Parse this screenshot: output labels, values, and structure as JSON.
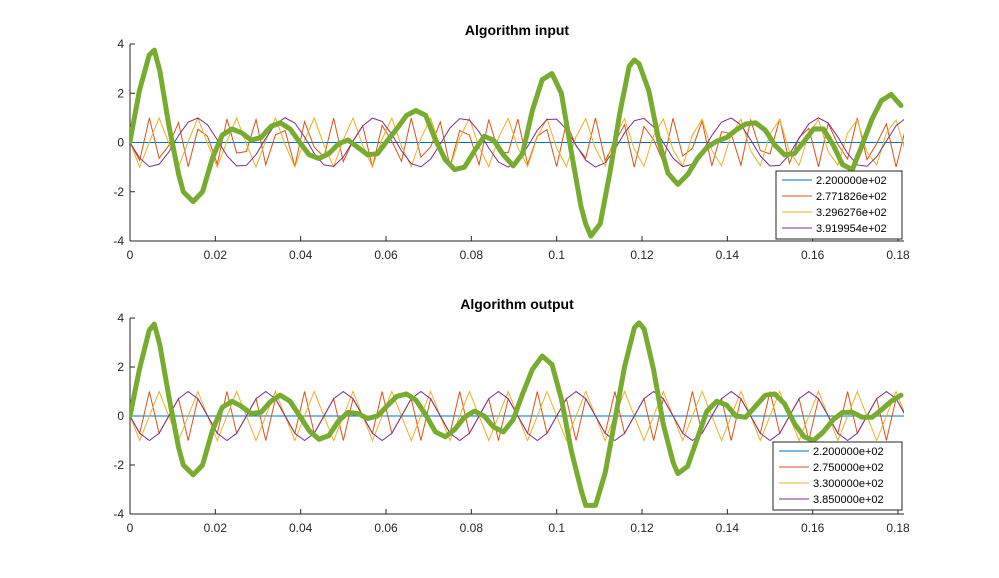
{
  "chart_data": [
    {
      "type": "line",
      "title": "Algorithm input",
      "xlabel": "",
      "ylabel": "",
      "xlim": [
        0,
        0.1814
      ],
      "ylim": [
        -4,
        4
      ],
      "xticks": [
        0,
        0.02,
        0.04,
        0.06,
        0.08,
        0.1,
        0.12,
        0.14,
        0.16,
        0.18
      ],
      "xtick_labels": [
        "0",
        "0.02",
        "0.04",
        "0.06",
        "0.08",
        "0.1",
        "0.12",
        "0.14",
        "0.16",
        "0.18"
      ],
      "yticks": [
        -4,
        -2,
        0,
        2,
        4
      ],
      "ytick_labels": [
        "-4",
        "-2",
        "0",
        "2",
        "4"
      ],
      "grid": false,
      "legend_position": "bottom-right",
      "sample_rate": 440,
      "series": [
        {
          "name": "2.200000e+02",
          "frequency": 220,
          "color": "#0072BD"
        },
        {
          "name": "2.771826e+02",
          "frequency": 277.1826,
          "color": "#D95319"
        },
        {
          "name": "3.296276e+02",
          "frequency": 329.6276,
          "color": "#EDB120"
        },
        {
          "name": "3.919954e+02",
          "frequency": 391.9954,
          "color": "#7E2F8E"
        }
      ],
      "sum_color": "#77AC30",
      "sum_points": [
        [
          0.0,
          0.05
        ],
        [
          0.0022,
          2.1
        ],
        [
          0.0045,
          3.55
        ],
        [
          0.0057,
          3.75
        ],
        [
          0.007,
          2.9
        ],
        [
          0.0091,
          0.7
        ],
        [
          0.0114,
          -1.3
        ],
        [
          0.0125,
          -2.0
        ],
        [
          0.0148,
          -2.4
        ],
        [
          0.017,
          -2.0
        ],
        [
          0.0193,
          -0.65
        ],
        [
          0.0216,
          0.3
        ],
        [
          0.0239,
          0.55
        ],
        [
          0.0261,
          0.4
        ],
        [
          0.0284,
          0.1
        ],
        [
          0.0307,
          0.2
        ],
        [
          0.033,
          0.65
        ],
        [
          0.0352,
          0.8
        ],
        [
          0.0375,
          0.55
        ],
        [
          0.0398,
          0.0
        ],
        [
          0.042,
          -0.5
        ],
        [
          0.0443,
          -0.65
        ],
        [
          0.0466,
          -0.45
        ],
        [
          0.0489,
          -0.05
        ],
        [
          0.0511,
          0.1
        ],
        [
          0.0534,
          -0.2
        ],
        [
          0.0557,
          -0.5
        ],
        [
          0.058,
          -0.45
        ],
        [
          0.0602,
          0.05
        ],
        [
          0.0625,
          0.55
        ],
        [
          0.0648,
          1.1
        ],
        [
          0.067,
          1.3
        ],
        [
          0.0693,
          1.1
        ],
        [
          0.0716,
          0.1
        ],
        [
          0.0739,
          -0.7
        ],
        [
          0.0761,
          -1.1
        ],
        [
          0.0784,
          -1.0
        ],
        [
          0.0807,
          -0.35
        ],
        [
          0.083,
          0.25
        ],
        [
          0.0852,
          0.1
        ],
        [
          0.0875,
          -0.5
        ],
        [
          0.0898,
          -0.95
        ],
        [
          0.092,
          -0.45
        ],
        [
          0.0943,
          1.3
        ],
        [
          0.0966,
          2.55
        ],
        [
          0.0989,
          2.8
        ],
        [
          0.1011,
          2.0
        ],
        [
          0.1034,
          -0.35
        ],
        [
          0.1057,
          -2.6
        ],
        [
          0.1068,
          -3.3
        ],
        [
          0.108,
          -3.8
        ],
        [
          0.1102,
          -3.3
        ],
        [
          0.1125,
          -1.2
        ],
        [
          0.1148,
          1.2
        ],
        [
          0.117,
          3.1
        ],
        [
          0.1182,
          3.35
        ],
        [
          0.1193,
          3.2
        ],
        [
          0.1216,
          2.1
        ],
        [
          0.1239,
          0.1
        ],
        [
          0.1261,
          -1.25
        ],
        [
          0.1284,
          -1.7
        ],
        [
          0.1307,
          -1.3
        ],
        [
          0.133,
          -0.65
        ],
        [
          0.1352,
          -0.2
        ],
        [
          0.1375,
          0.05
        ],
        [
          0.1398,
          0.2
        ],
        [
          0.142,
          0.5
        ],
        [
          0.1443,
          0.75
        ],
        [
          0.1466,
          0.8
        ],
        [
          0.1489,
          0.5
        ],
        [
          0.1511,
          -0.1
        ],
        [
          0.1534,
          -0.5
        ],
        [
          0.1557,
          -0.45
        ],
        [
          0.158,
          0.05
        ],
        [
          0.1602,
          0.55
        ],
        [
          0.1625,
          0.55
        ],
        [
          0.1648,
          -0.1
        ],
        [
          0.167,
          -0.9
        ],
        [
          0.1693,
          -1.1
        ],
        [
          0.1716,
          -0.1
        ],
        [
          0.1739,
          0.95
        ],
        [
          0.1761,
          1.7
        ],
        [
          0.1784,
          1.95
        ],
        [
          0.1807,
          1.5
        ]
      ]
    },
    {
      "type": "line",
      "title": "Algorithm output",
      "xlabel": "",
      "ylabel": "",
      "xlim": [
        0,
        0.1814
      ],
      "ylim": [
        -4,
        4
      ],
      "xticks": [
        0,
        0.02,
        0.04,
        0.06,
        0.08,
        0.1,
        0.12,
        0.14,
        0.16,
        0.18
      ],
      "xtick_labels": [
        "0",
        "0.02",
        "0.04",
        "0.06",
        "0.08",
        "0.1",
        "0.12",
        "0.14",
        "0.16",
        "0.18"
      ],
      "yticks": [
        -4,
        -2,
        0,
        2,
        4
      ],
      "ytick_labels": [
        "-4",
        "-2",
        "0",
        "2",
        "4"
      ],
      "grid": false,
      "legend_position": "bottom-right",
      "sample_rate": 440,
      "series": [
        {
          "name": "2.200000e+02",
          "frequency": 220,
          "color": "#0072BD"
        },
        {
          "name": "2.750000e+02",
          "frequency": 275,
          "color": "#D95319"
        },
        {
          "name": "3.300000e+02",
          "frequency": 330,
          "color": "#EDB120"
        },
        {
          "name": "3.850000e+02",
          "frequency": 385,
          "color": "#7E2F8E"
        }
      ],
      "sum_color": "#77AC30",
      "sum_points": [
        [
          0.0,
          0.0
        ],
        [
          0.0022,
          1.9
        ],
        [
          0.0045,
          3.5
        ],
        [
          0.0057,
          3.75
        ],
        [
          0.007,
          2.9
        ],
        [
          0.0091,
          0.8
        ],
        [
          0.0114,
          -1.3
        ],
        [
          0.0125,
          -2.0
        ],
        [
          0.0148,
          -2.4
        ],
        [
          0.017,
          -2.0
        ],
        [
          0.0193,
          -0.6
        ],
        [
          0.0216,
          0.35
        ],
        [
          0.0239,
          0.6
        ],
        [
          0.0261,
          0.4
        ],
        [
          0.0284,
          0.1
        ],
        [
          0.0307,
          0.15
        ],
        [
          0.033,
          0.6
        ],
        [
          0.0352,
          0.85
        ],
        [
          0.0375,
          0.6
        ],
        [
          0.0398,
          0.0
        ],
        [
          0.042,
          -0.6
        ],
        [
          0.0443,
          -0.95
        ],
        [
          0.0466,
          -0.8
        ],
        [
          0.0489,
          -0.2
        ],
        [
          0.0511,
          0.15
        ],
        [
          0.0534,
          0.1
        ],
        [
          0.0557,
          -0.1
        ],
        [
          0.058,
          0.0
        ],
        [
          0.0602,
          0.4
        ],
        [
          0.0625,
          0.8
        ],
        [
          0.0648,
          0.9
        ],
        [
          0.067,
          0.65
        ],
        [
          0.0693,
          0.05
        ],
        [
          0.0716,
          -0.65
        ],
        [
          0.0739,
          -0.85
        ],
        [
          0.0761,
          -0.55
        ],
        [
          0.0784,
          -0.05
        ],
        [
          0.0807,
          0.2
        ],
        [
          0.083,
          0.0
        ],
        [
          0.0852,
          -0.45
        ],
        [
          0.0875,
          -0.65
        ],
        [
          0.0898,
          -0.15
        ],
        [
          0.092,
          0.9
        ],
        [
          0.0943,
          1.9
        ],
        [
          0.0966,
          2.45
        ],
        [
          0.0989,
          2.1
        ],
        [
          0.1011,
          0.7
        ],
        [
          0.1034,
          -1.4
        ],
        [
          0.1057,
          -3.0
        ],
        [
          0.1068,
          -3.65
        ],
        [
          0.1091,
          -3.65
        ],
        [
          0.1114,
          -2.3
        ],
        [
          0.1136,
          -0.2
        ],
        [
          0.1159,
          2.0
        ],
        [
          0.1182,
          3.6
        ],
        [
          0.1193,
          3.8
        ],
        [
          0.1205,
          3.55
        ],
        [
          0.1227,
          1.9
        ],
        [
          0.125,
          -0.35
        ],
        [
          0.1273,
          -1.9
        ],
        [
          0.1284,
          -2.35
        ],
        [
          0.1307,
          -2.05
        ],
        [
          0.133,
          -0.9
        ],
        [
          0.1352,
          0.2
        ],
        [
          0.1375,
          0.6
        ],
        [
          0.1398,
          0.45
        ],
        [
          0.142,
          0.0
        ],
        [
          0.1443,
          -0.05
        ],
        [
          0.1466,
          0.4
        ],
        [
          0.1489,
          0.85
        ],
        [
          0.1511,
          0.9
        ],
        [
          0.1534,
          0.5
        ],
        [
          0.1557,
          -0.3
        ],
        [
          0.158,
          -0.85
        ],
        [
          0.1602,
          -1.0
        ],
        [
          0.1625,
          -0.65
        ],
        [
          0.1648,
          -0.15
        ],
        [
          0.167,
          0.15
        ],
        [
          0.1693,
          0.15
        ],
        [
          0.1716,
          -0.05
        ],
        [
          0.1739,
          -0.05
        ],
        [
          0.1761,
          0.25
        ],
        [
          0.1784,
          0.6
        ],
        [
          0.1807,
          0.85
        ]
      ]
    }
  ]
}
